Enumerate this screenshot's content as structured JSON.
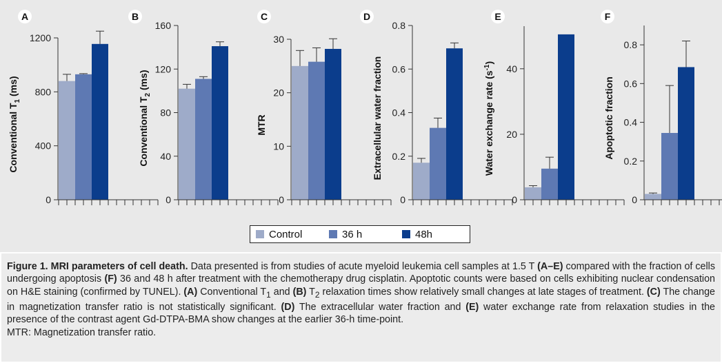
{
  "colors": {
    "control": "#9eabc9",
    "h36": "#5e79b3",
    "h48": "#0b3d8c",
    "axis": "#333333"
  },
  "legend": [
    {
      "label": "Control",
      "color": "#9eabc9"
    },
    {
      "label": "36 h",
      "color": "#5e79b3"
    },
    {
      "label": "48h",
      "color": "#0b3d8c"
    }
  ],
  "chart_data": [
    {
      "type": "bar",
      "panel": "A",
      "ylabel": "Conventional T",
      "ylabel_sub": "1",
      "ylabel_suffix": " (ms)",
      "ylim": [
        0,
        1200
      ],
      "ticks": [
        0,
        400,
        800,
        1200
      ],
      "tick_labels": [
        "0",
        "400",
        "800",
        "1200"
      ],
      "categories": [
        "Control",
        "36 h",
        "48h"
      ],
      "values": [
        880,
        930,
        1155
      ],
      "errors": [
        50,
        5,
        95
      ]
    },
    {
      "type": "bar",
      "panel": "B",
      "ylabel": "Conventional T",
      "ylabel_sub": "2",
      "ylabel_suffix": " (ms)",
      "ylim": [
        0,
        160
      ],
      "ticks": [
        0,
        40,
        80,
        120,
        160
      ],
      "tick_labels": [
        "0",
        "40",
        "80",
        "120",
        "160"
      ],
      "categories": [
        "Control",
        "36 h",
        "48h"
      ],
      "values": [
        102,
        111,
        141
      ],
      "errors": [
        4,
        2,
        4
      ]
    },
    {
      "type": "bar",
      "panel": "C",
      "ylabel": "MTR",
      "ylabel_sub": "",
      "ylabel_suffix": "",
      "ylim": [
        0,
        30
      ],
      "ticks": [
        0,
        10,
        20,
        30
      ],
      "tick_labels": [
        "0",
        "10",
        "20",
        "30"
      ],
      "categories": [
        "Control",
        "36 h",
        "48h"
      ],
      "values": [
        25,
        25.8,
        28.2
      ],
      "errors": [
        2.9,
        2.6,
        1.9
      ]
    },
    {
      "type": "bar",
      "panel": "D",
      "ylabel": "Extracellular water fraction",
      "ylabel_sub": "",
      "ylabel_suffix": "",
      "ylim": [
        0,
        0.8
      ],
      "ticks": [
        0,
        0.2,
        0.4,
        0.6,
        0.8
      ],
      "tick_labels": [
        "0",
        "0.2",
        "0.4",
        "0.6",
        "0.8"
      ],
      "categories": [
        "Control",
        "36 h",
        "48h"
      ],
      "values": [
        0.17,
        0.33,
        0.695
      ],
      "errors": [
        0.02,
        0.045,
        0.025
      ]
    },
    {
      "type": "bar",
      "panel": "E",
      "ylabel": "Water exchange rate (s",
      "ylabel_sup": "-1",
      "ylabel_suffix": ")",
      "ylim": [
        0,
        53
      ],
      "ticks": [
        0,
        20,
        40
      ],
      "tick_labels": [
        "0",
        "20",
        "40"
      ],
      "categories": [
        "Control",
        "36 h",
        "48h"
      ],
      "values": [
        3.8,
        9.5,
        50.5
      ],
      "errors": [
        0.5,
        3.5,
        0
      ]
    },
    {
      "type": "bar",
      "panel": "F",
      "ylabel": "Apoptotic fraction",
      "ylabel_sub": "",
      "ylabel_suffix": "",
      "ylim": [
        0,
        0.9
      ],
      "ticks": [
        0,
        0.2,
        0.4,
        0.6,
        0.8
      ],
      "tick_labels": [
        "0",
        "0.2",
        "0.4",
        "0.6",
        "0.8"
      ],
      "categories": [
        "Control",
        "36 h",
        "48h"
      ],
      "values": [
        0.03,
        0.345,
        0.685
      ],
      "errors": [
        0.005,
        0.245,
        0.135
      ]
    }
  ],
  "caption": {
    "title": "Figure 1. MRI parameters of cell death.",
    "seg1": " Data presented is from studies of acute myeloid leukemia cell samples at 1.5 T ",
    "ref_ae": "(A–E)",
    "seg2": " compared with the fraction of cells undergoing apoptosis ",
    "ref_f": "(F)",
    "seg3": " 36 and 48 h after treatment with the chemotherapy drug cisplatin. Apoptotic counts were based on cells exhibiting nuclear condensation on H&E staining (confirmed by TUNEL). ",
    "ref_a": "(A)",
    "seg4": " Conventional T",
    "sub1": "1",
    "seg5": " and ",
    "ref_b": "(B)",
    "seg6": " T",
    "sub2": "2",
    "seg7": " relaxation times show relatively small changes at late stages of treatment. ",
    "ref_c": "(C)",
    "seg8": " The change in magnetization transfer ratio is not statistically significant. ",
    "ref_d": "(D)",
    "seg9": " The extracellular water fraction and ",
    "ref_e": "(E)",
    "seg10": " water exchange rate from relaxation studies in the presence of the contrast agent Gd-DTPA-BMA show changes at the earlier 36-h time-point.",
    "abbrev": "MTR: Magnetization transfer ratio."
  }
}
